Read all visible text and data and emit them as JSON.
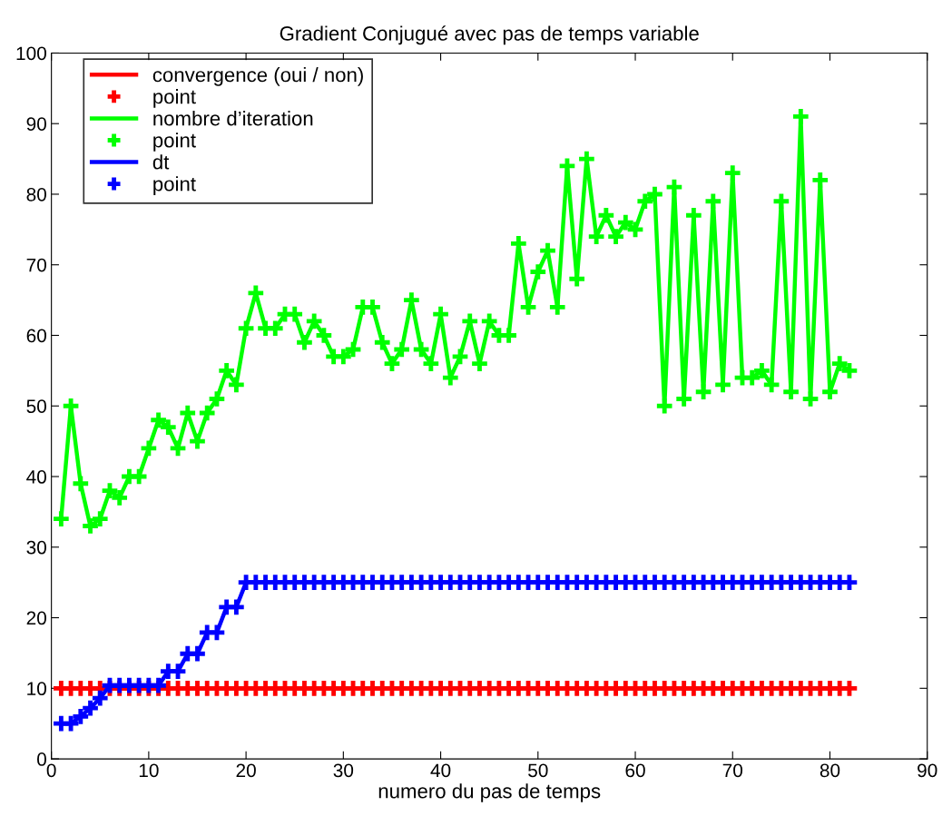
{
  "chart_data": {
    "type": "line",
    "title": "Gradient Conjugué avec pas de temps variable",
    "xlabel": "numero du pas de temps",
    "x": [
      1,
      2,
      3,
      4,
      5,
      6,
      7,
      8,
      9,
      10,
      11,
      12,
      13,
      14,
      15,
      16,
      17,
      18,
      19,
      20,
      21,
      22,
      23,
      24,
      25,
      26,
      27,
      28,
      29,
      30,
      31,
      32,
      33,
      34,
      35,
      36,
      37,
      38,
      39,
      40,
      41,
      42,
      43,
      44,
      45,
      46,
      47,
      48,
      49,
      50,
      51,
      52,
      53,
      54,
      55,
      56,
      57,
      58,
      59,
      60,
      61,
      62,
      63,
      64,
      65,
      66,
      67,
      68,
      69,
      70,
      71,
      72,
      73,
      74,
      75,
      76,
      77,
      78,
      79,
      80,
      81,
      82
    ],
    "series": [
      {
        "name": "convergence (oui / non)",
        "marker": "none",
        "color": "#ff0000",
        "values": [
          10,
          10,
          10,
          10,
          10,
          10,
          10,
          10,
          10,
          10,
          10,
          10,
          10,
          10,
          10,
          10,
          10,
          10,
          10,
          10,
          10,
          10,
          10,
          10,
          10,
          10,
          10,
          10,
          10,
          10,
          10,
          10,
          10,
          10,
          10,
          10,
          10,
          10,
          10,
          10,
          10,
          10,
          10,
          10,
          10,
          10,
          10,
          10,
          10,
          10,
          10,
          10,
          10,
          10,
          10,
          10,
          10,
          10,
          10,
          10,
          10,
          10,
          10,
          10,
          10,
          10,
          10,
          10,
          10,
          10,
          10,
          10,
          10,
          10,
          10,
          10,
          10,
          10,
          10,
          10,
          10,
          10
        ]
      },
      {
        "name": "point",
        "type": "scatter",
        "marker": "cross",
        "color": "#ff0000",
        "values": [
          10,
          10,
          10,
          10,
          10,
          10,
          10,
          10,
          10,
          10,
          10,
          10,
          10,
          10,
          10,
          10,
          10,
          10,
          10,
          10,
          10,
          10,
          10,
          10,
          10,
          10,
          10,
          10,
          10,
          10,
          10,
          10,
          10,
          10,
          10,
          10,
          10,
          10,
          10,
          10,
          10,
          10,
          10,
          10,
          10,
          10,
          10,
          10,
          10,
          10,
          10,
          10,
          10,
          10,
          10,
          10,
          10,
          10,
          10,
          10,
          10,
          10,
          10,
          10,
          10,
          10,
          10,
          10,
          10,
          10,
          10,
          10,
          10,
          10,
          10,
          10,
          10,
          10,
          10,
          10,
          10,
          10
        ]
      },
      {
        "name": "nombre d’iteration",
        "marker": "none",
        "color": "#00ff00",
        "values": [
          34,
          50,
          39,
          33,
          34,
          38,
          37,
          40,
          40,
          44,
          48,
          47,
          44,
          49,
          45,
          49,
          51,
          55,
          53,
          61,
          66,
          61,
          61,
          63,
          63,
          59,
          62,
          60,
          57,
          57,
          58,
          64,
          64,
          59,
          56,
          58,
          65,
          58,
          56,
          63,
          54,
          57,
          62,
          56,
          62,
          60,
          60,
          73,
          64,
          69,
          72,
          64,
          84,
          68,
          85,
          74,
          77,
          74,
          76,
          75,
          79,
          80,
          50,
          81,
          51,
          77,
          52,
          79,
          53,
          83,
          54,
          54,
          55,
          53,
          79,
          52,
          91,
          51,
          82,
          52,
          56,
          55
        ]
      },
      {
        "name": "point",
        "type": "scatter",
        "marker": "cross",
        "color": "#00ff00",
        "values": [
          34,
          50,
          39,
          33,
          34,
          38,
          37,
          40,
          40,
          44,
          48,
          47,
          44,
          49,
          45,
          49,
          51,
          55,
          53,
          61,
          66,
          61,
          61,
          63,
          63,
          59,
          62,
          60,
          57,
          57,
          58,
          64,
          64,
          59,
          56,
          58,
          65,
          58,
          56,
          63,
          54,
          57,
          62,
          56,
          62,
          60,
          60,
          73,
          64,
          69,
          72,
          64,
          84,
          68,
          85,
          74,
          77,
          74,
          76,
          75,
          79,
          80,
          50,
          81,
          51,
          77,
          52,
          79,
          53,
          83,
          54,
          54,
          55,
          53,
          79,
          52,
          91,
          51,
          82,
          52,
          56,
          55
        ]
      },
      {
        "name": "dt",
        "marker": "none",
        "color": "#0000ff",
        "values": [
          5,
          5,
          6,
          7.2,
          8.6,
          10.4,
          10.4,
          10.4,
          10.4,
          10.4,
          10.4,
          12.4,
          12.4,
          14.9,
          14.9,
          17.9,
          17.9,
          21.5,
          21.5,
          25,
          25,
          25,
          25,
          25,
          25,
          25,
          25,
          25,
          25,
          25,
          25,
          25,
          25,
          25,
          25,
          25,
          25,
          25,
          25,
          25,
          25,
          25,
          25,
          25,
          25,
          25,
          25,
          25,
          25,
          25,
          25,
          25,
          25,
          25,
          25,
          25,
          25,
          25,
          25,
          25,
          25,
          25,
          25,
          25,
          25,
          25,
          25,
          25,
          25,
          25,
          25,
          25,
          25,
          25,
          25,
          25,
          25,
          25,
          25,
          25,
          25,
          25
        ]
      },
      {
        "name": "point",
        "type": "scatter",
        "marker": "cross",
        "color": "#0000ff",
        "values": [
          5,
          5,
          6,
          7.2,
          8.6,
          10.4,
          10.4,
          10.4,
          10.4,
          10.4,
          10.4,
          12.4,
          12.4,
          14.9,
          14.9,
          17.9,
          17.9,
          21.5,
          21.5,
          25,
          25,
          25,
          25,
          25,
          25,
          25,
          25,
          25,
          25,
          25,
          25,
          25,
          25,
          25,
          25,
          25,
          25,
          25,
          25,
          25,
          25,
          25,
          25,
          25,
          25,
          25,
          25,
          25,
          25,
          25,
          25,
          25,
          25,
          25,
          25,
          25,
          25,
          25,
          25,
          25,
          25,
          25,
          25,
          25,
          25,
          25,
          25,
          25,
          25,
          25,
          25,
          25,
          25,
          25,
          25,
          25,
          25,
          25,
          25,
          25,
          25,
          25
        ]
      }
    ],
    "xlim": [
      0,
      90
    ],
    "xticks": [
      0,
      10,
      20,
      30,
      40,
      50,
      60,
      70,
      80,
      90
    ],
    "ylim": [
      0,
      100
    ],
    "yticks": [
      0,
      10,
      20,
      30,
      40,
      50,
      60,
      70,
      80,
      90,
      100
    ],
    "grid": false,
    "legend": "top left",
    "line_style": "solid"
  }
}
